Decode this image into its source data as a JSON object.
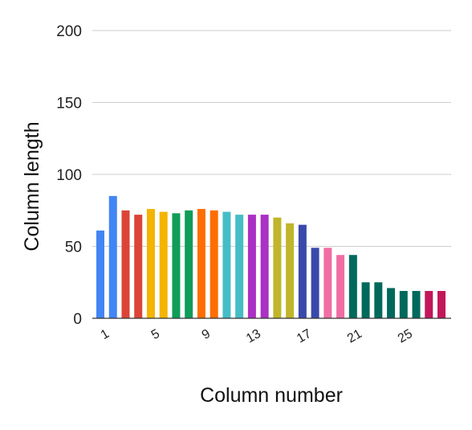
{
  "chart_data": {
    "type": "bar",
    "xlabel": "Column number",
    "ylabel": "Column length",
    "ylim": [
      0,
      200
    ],
    "yticks": [
      0,
      50,
      100,
      150,
      200
    ],
    "grid": true,
    "x_tick_labels": [
      "1",
      "5",
      "9",
      "13",
      "17",
      "21",
      "25"
    ],
    "categories": [
      1,
      2,
      3,
      4,
      5,
      6,
      7,
      8,
      9,
      10,
      11,
      12,
      13,
      14,
      15,
      16,
      17,
      18,
      19,
      20,
      21,
      22,
      23,
      24,
      25,
      26,
      27,
      28
    ],
    "values": [
      61,
      85,
      75,
      72,
      76,
      74,
      73,
      75,
      76,
      75,
      74,
      72,
      72,
      72,
      70,
      66,
      65,
      49,
      49,
      44,
      44,
      25,
      25,
      21,
      19,
      19,
      19,
      19
    ],
    "colors": [
      "#4285f4",
      "#4285f4",
      "#db4437",
      "#db4437",
      "#f4b400",
      "#f4b400",
      "#0f9d58",
      "#0f9d58",
      "#ff6d00",
      "#ff6d00",
      "#46bdc6",
      "#46bdc6",
      "#ab30c4",
      "#ab30c4",
      "#c0b52b",
      "#c0b52b",
      "#3949ab",
      "#3949ab",
      "#f06ea4",
      "#f06ea4",
      "#00695c",
      "#00695c",
      "#00695c",
      "#00695c",
      "#00695c",
      "#00695c",
      "#c2185b",
      "#c2185b"
    ]
  }
}
